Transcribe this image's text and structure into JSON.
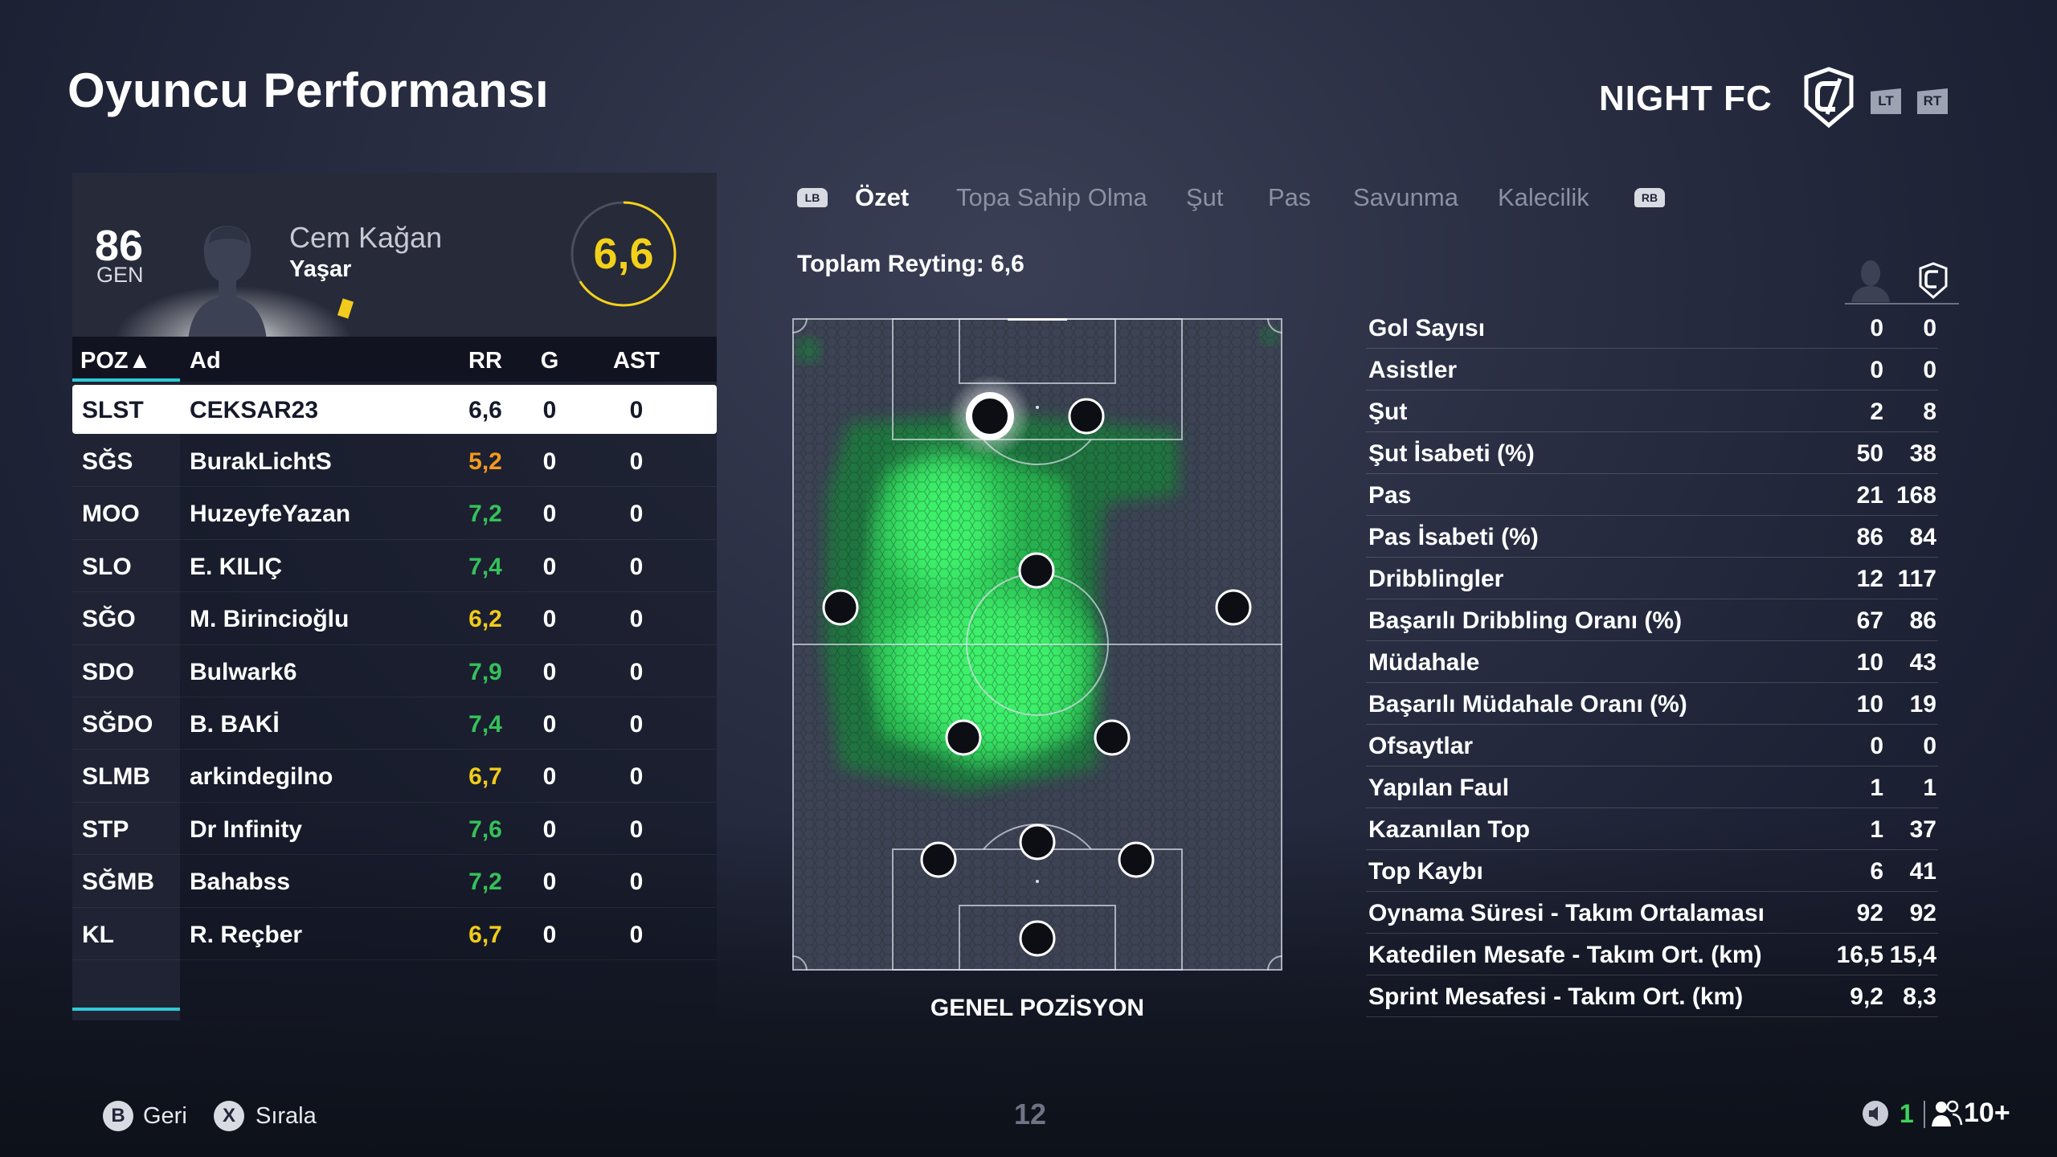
{
  "page": {
    "title": "Oyuncu Performansı"
  },
  "club": {
    "name": "NIGHT FC",
    "lt_label": "LT",
    "rt_label": "RT"
  },
  "player_card": {
    "ovr": "86",
    "ovr_label": "GEN",
    "first_name": "Cem Kağan",
    "last_name": "Yaşar",
    "rating": "6,6",
    "rating_fraction": 0.66,
    "colors": {
      "rating": "#f3d11a",
      "card": "#f3cb1c"
    }
  },
  "table": {
    "headers": {
      "pos": "POZ▲",
      "name": "Ad",
      "rr": "RR",
      "g": "G",
      "ast": "AST"
    },
    "rows": [
      {
        "pos": "SLST",
        "name": "CEKSAR23",
        "rr": "6,6",
        "g": "0",
        "ast": "0"
      },
      {
        "pos": "SĞS",
        "name": "BurakLichtS",
        "rr": "5,2",
        "g": "0",
        "ast": "0"
      },
      {
        "pos": "MOO",
        "name": "HuzeyfeYazan",
        "rr": "7,2",
        "g": "0",
        "ast": "0"
      },
      {
        "pos": "SLO",
        "name": "E. KILIÇ",
        "rr": "7,4",
        "g": "0",
        "ast": "0"
      },
      {
        "pos": "SĞO",
        "name": "M. Birincioğlu",
        "rr": "6,2",
        "g": "0",
        "ast": "0"
      },
      {
        "pos": "SDO",
        "name": "Bulwark6",
        "rr": "7,9",
        "g": "0",
        "ast": "0"
      },
      {
        "pos": "SĞDO",
        "name": "B. BAKİ",
        "rr": "7,4",
        "g": "0",
        "ast": "0"
      },
      {
        "pos": "SLMB",
        "name": "arkindegilno",
        "rr": "6,7",
        "g": "0",
        "ast": "0"
      },
      {
        "pos": "STP",
        "name": "Dr Infinity",
        "rr": "7,6",
        "g": "0",
        "ast": "0"
      },
      {
        "pos": "SĞMB",
        "name": "Bahabss",
        "rr": "7,2",
        "g": "0",
        "ast": "0"
      },
      {
        "pos": "KL",
        "name": "R. Reçber",
        "rr": "6,7",
        "g": "0",
        "ast": "0"
      }
    ]
  },
  "tabs": {
    "lb_label": "LB",
    "rb_label": "RB",
    "items": [
      "Özet",
      "Topa Sahip Olma",
      "Şut",
      "Pas",
      "Savunma",
      "Kalecilik"
    ]
  },
  "summary": {
    "total_rating": "Toplam Reyting: 6,6",
    "pitch_label": "GENEL POZİSYON"
  },
  "stats": [
    {
      "label": "Gol Sayısı",
      "player": "0",
      "team": "0"
    },
    {
      "label": "Asistler",
      "player": "0",
      "team": "0"
    },
    {
      "label": "Şut",
      "player": "2",
      "team": "8"
    },
    {
      "label": "Şut İsabeti (%)",
      "player": "50",
      "team": "38"
    },
    {
      "label": "Pas",
      "player": "21",
      "team": "168"
    },
    {
      "label": "Pas İsabeti (%)",
      "player": "86",
      "team": "84"
    },
    {
      "label": "Dribblingler",
      "player": "12",
      "team": "117"
    },
    {
      "label": "Başarılı Dribbling Oranı (%)",
      "player": "67",
      "team": "86"
    },
    {
      "label": "Müdahale",
      "player": "10",
      "team": "43"
    },
    {
      "label": "Başarılı Müdahale Oranı (%)",
      "player": "10",
      "team": "19"
    },
    {
      "label": "Ofsaytlar",
      "player": "0",
      "team": "0"
    },
    {
      "label": "Yapılan Faul",
      "player": "1",
      "team": "1"
    },
    {
      "label": "Kazanılan Top",
      "player": "1",
      "team": "37"
    },
    {
      "label": "Top Kaybı",
      "player": "6",
      "team": "41"
    },
    {
      "label": "Oynama Süresi - Takım Ortalaması",
      "player": "92",
      "team": "92"
    },
    {
      "label": "Katedilen Mesafe - Takım Ort. (km)",
      "player": "16,5",
      "team": "15,4"
    },
    {
      "label": "Sprint Mesafesi - Takım Ort. (km)",
      "player": "9,2",
      "team": "8,3"
    }
  ],
  "footer": {
    "back_button": "B",
    "back_label": "Geri",
    "sort_button": "X",
    "sort_label": "Sırala",
    "page_number": "12",
    "online_count": "1",
    "party_count": "10+"
  }
}
